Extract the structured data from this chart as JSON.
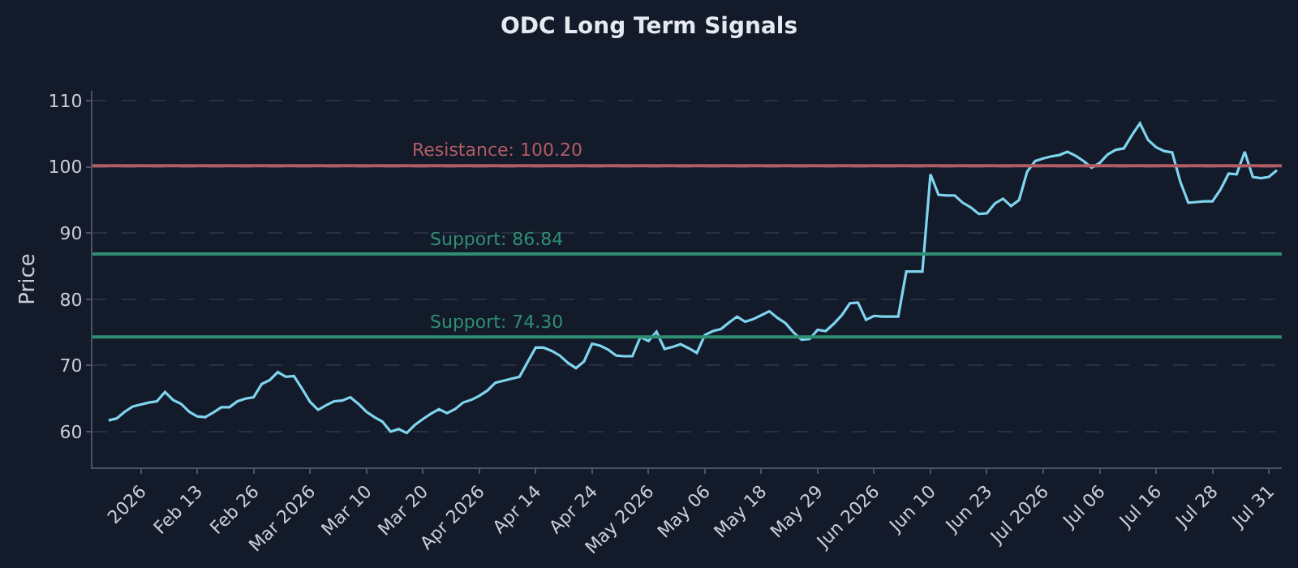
{
  "chart_data": {
    "type": "line",
    "title": "ODC Long Term Signals",
    "ylabel": "Price",
    "categories": [
      null,
      null,
      null,
      null,
      "2026",
      null,
      null,
      null,
      null,
      null,
      null,
      "Feb 13",
      null,
      null,
      null,
      null,
      null,
      null,
      "Feb 26",
      null,
      null,
      null,
      null,
      null,
      null,
      "Mar 2026",
      null,
      null,
      null,
      null,
      null,
      null,
      "Mar 10",
      null,
      null,
      null,
      null,
      null,
      null,
      "Mar 20",
      null,
      null,
      null,
      null,
      null,
      null,
      "Apr 2026",
      null,
      null,
      null,
      null,
      null,
      null,
      "Apr 14",
      null,
      null,
      null,
      null,
      null,
      null,
      "Apr 24",
      null,
      null,
      null,
      null,
      null,
      null,
      "May 2026",
      null,
      null,
      null,
      null,
      null,
      null,
      "May 06",
      null,
      null,
      null,
      null,
      null,
      null,
      "May 18",
      null,
      null,
      null,
      null,
      null,
      null,
      "May 29",
      null,
      null,
      null,
      null,
      null,
      null,
      "Jun 2026",
      null,
      null,
      null,
      null,
      null,
      null,
      "Jun 10",
      null,
      null,
      null,
      null,
      null,
      null,
      "Jun 23",
      null,
      null,
      null,
      null,
      null,
      null,
      "Jul 2026",
      null,
      null,
      null,
      null,
      null,
      null,
      "Jul 06",
      null,
      null,
      null,
      null,
      null,
      null,
      "Jul 16",
      null,
      null,
      null,
      null,
      null,
      null,
      "Jul 28",
      null,
      null,
      null,
      null,
      null,
      null,
      "Jul 31",
      null
    ],
    "series": [
      {
        "color": "#7fd4ee",
        "values": [
          61.7,
          62.0,
          63.0,
          63.8,
          64.1,
          64.4,
          64.6,
          66.0,
          64.8,
          64.2,
          63.0,
          62.3,
          62.2,
          62.9,
          63.7,
          63.7,
          64.6,
          65.0,
          65.2,
          67.2,
          67.8,
          69.0,
          68.3,
          68.4,
          66.5,
          64.5,
          63.3,
          64.0,
          64.6,
          64.7,
          65.2,
          64.2,
          63.0,
          62.2,
          61.5,
          60.0,
          60.4,
          59.8,
          61.0,
          61.9,
          62.7,
          63.4,
          62.8,
          63.4,
          64.4,
          64.8,
          65.4,
          66.2,
          67.4,
          67.7,
          68.0,
          68.3,
          70.5,
          72.7,
          72.7,
          72.2,
          71.5,
          70.4,
          69.6,
          70.6,
          73.3,
          73.0,
          72.4,
          71.5,
          71.4,
          71.4,
          74.3,
          73.7,
          75.1,
          72.5,
          72.8,
          73.2,
          72.6,
          71.9,
          74.6,
          75.2,
          75.5,
          76.5,
          77.4,
          76.6,
          77.0,
          77.6,
          78.2,
          77.2,
          76.4,
          75.0,
          73.9,
          74.0,
          75.4,
          75.2,
          76.3,
          77.6,
          79.4,
          79.5,
          76.9,
          77.5,
          77.4,
          77.4,
          77.4,
          84.2,
          84.2,
          84.2,
          98.9,
          95.8,
          95.7,
          95.7,
          94.6,
          93.9,
          92.9,
          93.0,
          94.5,
          95.2,
          94.1,
          95.0,
          99.3,
          100.9,
          101.3,
          101.6,
          101.8,
          102.3,
          101.7,
          100.9,
          99.9,
          100.6,
          101.9,
          102.6,
          102.8,
          104.8,
          106.6,
          104.1,
          103.0,
          102.4,
          102.2,
          97.8,
          94.6,
          94.7,
          94.8,
          94.8,
          96.6,
          99.0,
          98.9,
          102.3,
          98.5,
          98.3,
          98.5,
          99.5
        ]
      }
    ],
    "ylim": [
      54.6,
      111.5
    ],
    "yticks": [
      60,
      70,
      80,
      90,
      100,
      110
    ],
    "grid": "y",
    "line_style": "solid",
    "ref_lines": [
      {
        "axis": "y",
        "value": 100.2,
        "label": "Resistance: 100.20",
        "color": "#b35c63"
      },
      {
        "axis": "y",
        "value": 86.84,
        "label": "Support: 86.84",
        "color": "#2f8f72"
      },
      {
        "axis": "y",
        "value": 74.3,
        "label": "Support: 74.30",
        "color": "#2f8f72"
      }
    ]
  }
}
